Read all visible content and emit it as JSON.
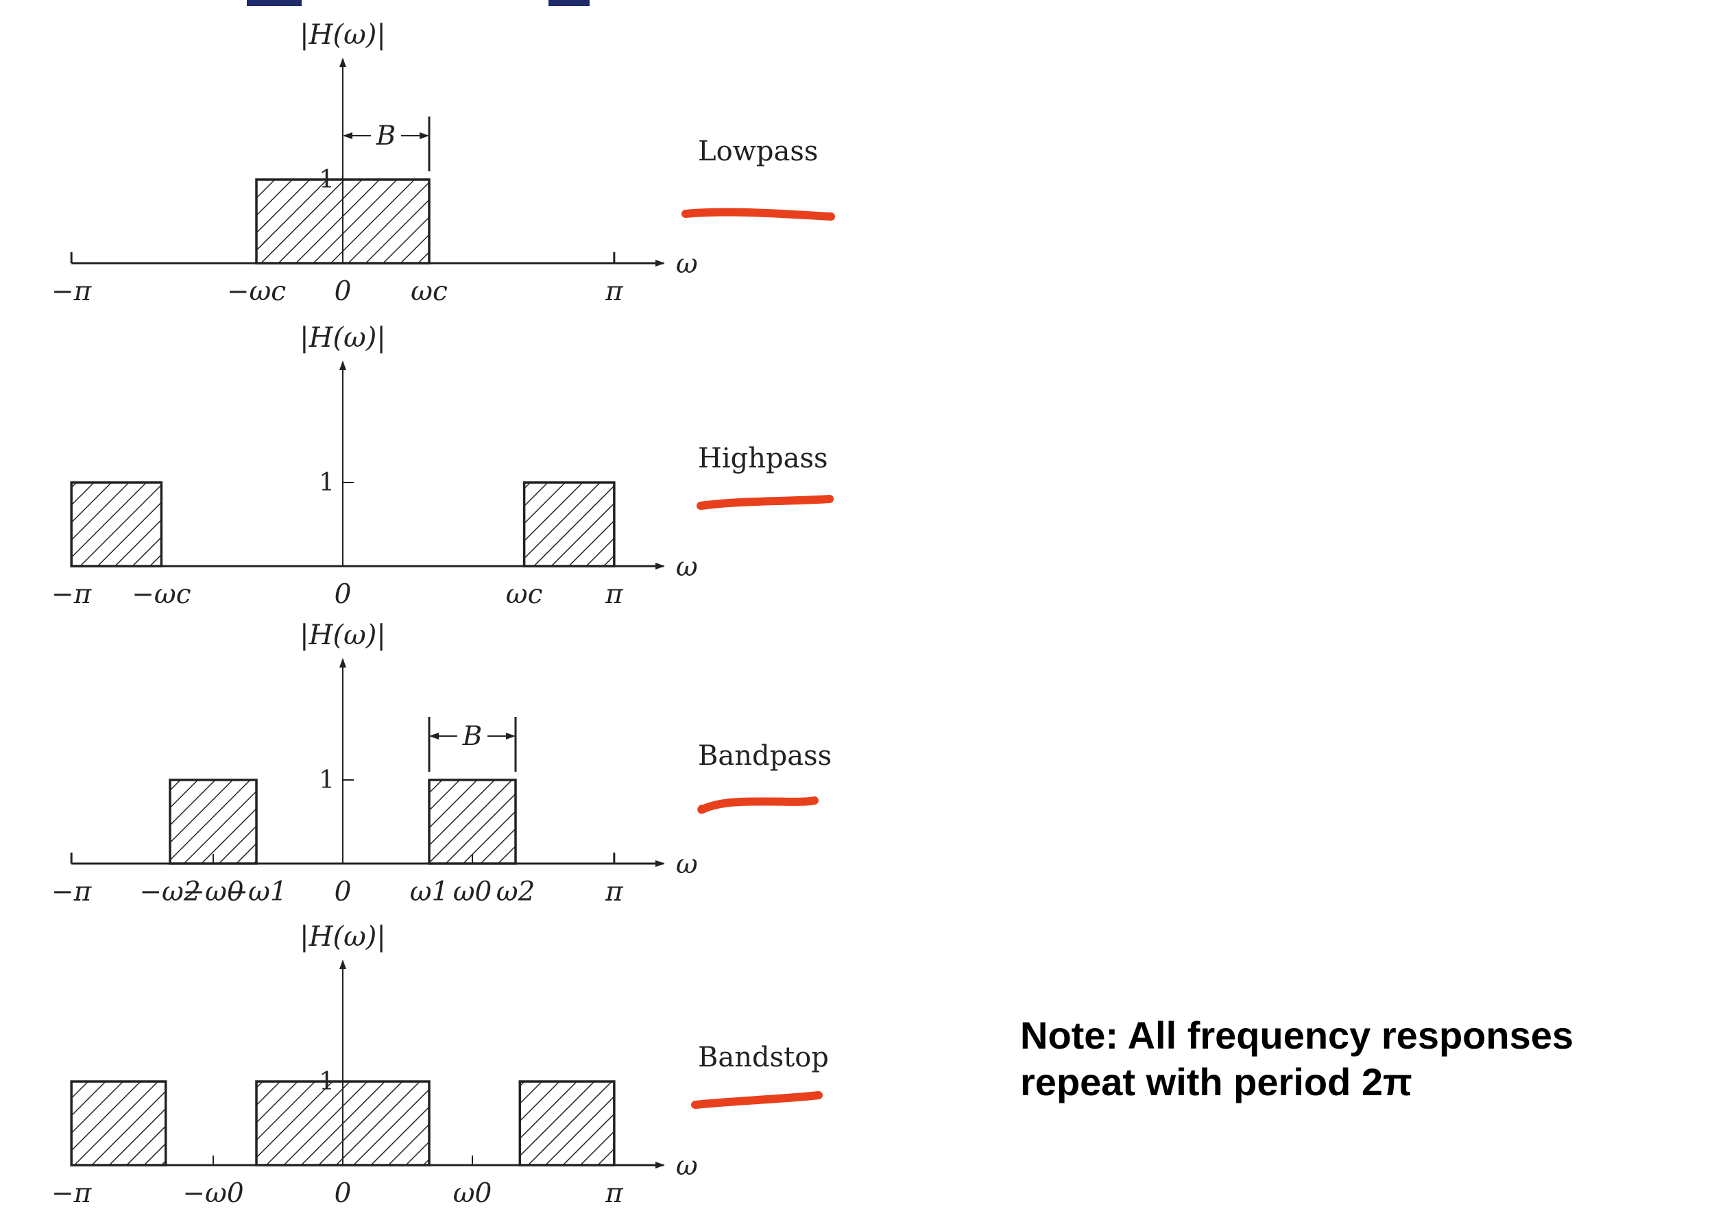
{
  "y_axis_label": "|H(ω)|",
  "x_axis_symbol": "ω",
  "unit_level": "1",
  "bandwidth_label": "B",
  "note": {
    "line1": "Note: All frequency responses",
    "line2": "repeat with period 2π"
  },
  "colors": {
    "annotation_underline": "#e8401c",
    "ink": "#222222"
  },
  "panels": [
    {
      "name": "Lowpass",
      "ticks": [
        "−π",
        "−ωc",
        "0",
        "ωc",
        "π"
      ],
      "passbands": [
        [
          -1.0,
          1.0
        ]
      ],
      "bandwidth_marker": true
    },
    {
      "name": "Highpass",
      "ticks": [
        "−π",
        "−ωc",
        "0",
        "ωc",
        "π"
      ],
      "passbands": [
        [
          -3.14159,
          -2.1
        ],
        [
          2.1,
          3.14159
        ]
      ],
      "bandwidth_marker": false
    },
    {
      "name": "Bandpass",
      "ticks": [
        "−π",
        "−ω2",
        "−ω0",
        "−ω1",
        "0",
        "ω1",
        "ω0",
        "ω2",
        "π"
      ],
      "passbands": [
        [
          -2.0,
          -1.0
        ],
        [
          1.0,
          2.0
        ]
      ],
      "bandwidth_marker": true
    },
    {
      "name": "Bandstop",
      "ticks": [
        "−π",
        "−ω0",
        "0",
        "ω0",
        "π"
      ],
      "passbands": [
        [
          -3.14159,
          -2.05
        ],
        [
          -1.0,
          1.0
        ],
        [
          2.05,
          3.14159
        ]
      ],
      "bandwidth_marker": false
    }
  ]
}
